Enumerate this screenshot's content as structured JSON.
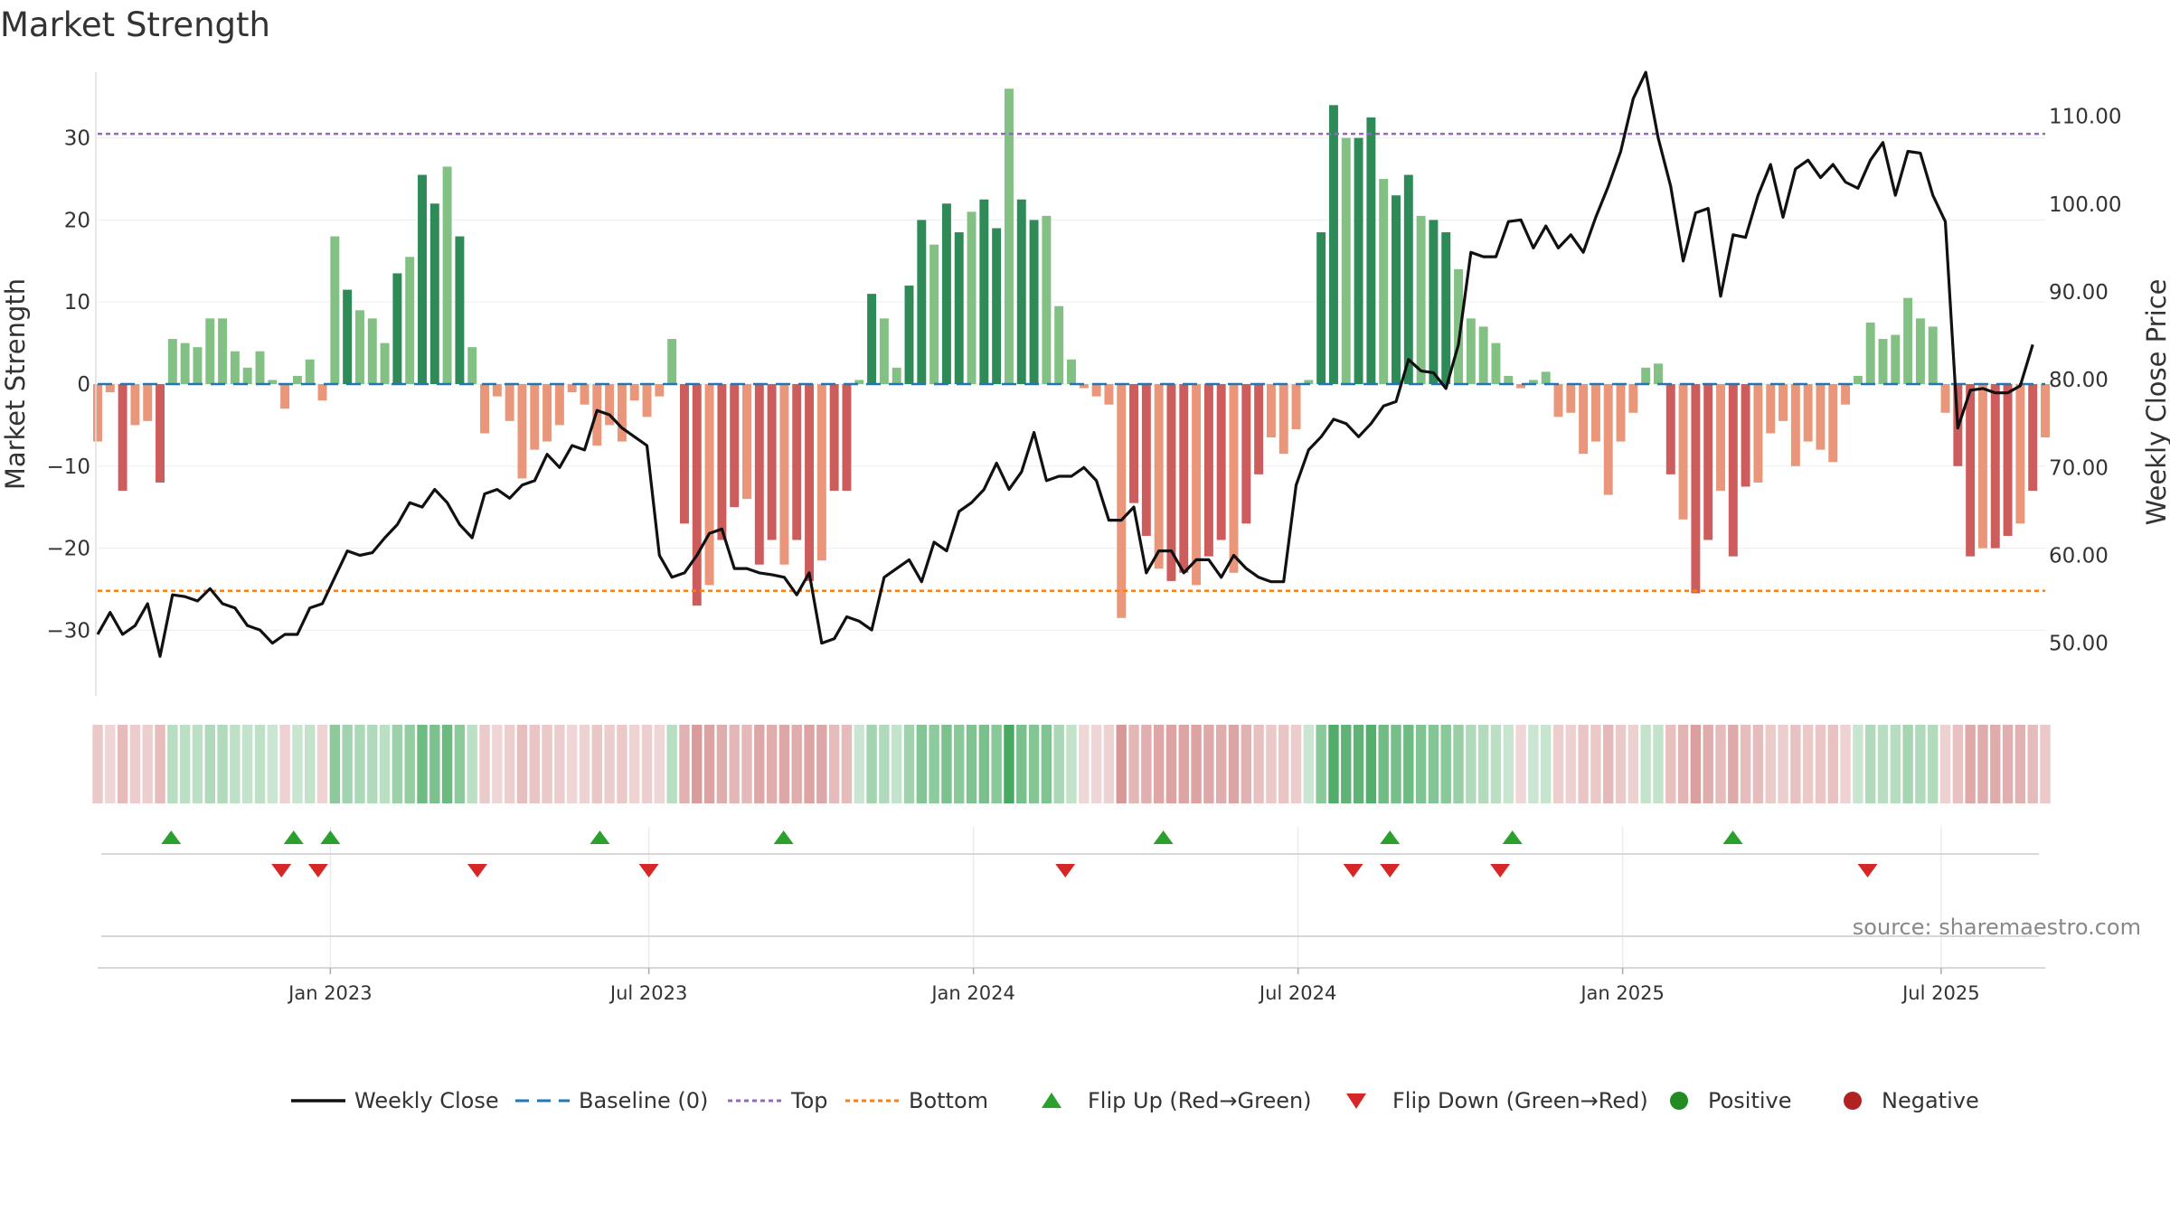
{
  "title": "Market Strength",
  "source": "source: sharemaestro.com",
  "chart_data": {
    "type": "bar",
    "title": "Market Strength",
    "ylabel": "Market Strength",
    "y2label": "Weekly Close Price",
    "ylim": [
      -38,
      38
    ],
    "y2lim": [
      44,
      115
    ],
    "yticks": [
      30,
      20,
      10,
      0,
      -10,
      -20,
      -30
    ],
    "yticklabels": [
      "30",
      "20",
      "10",
      "0",
      "−10",
      "−20",
      "−30"
    ],
    "y2ticks": [
      110,
      100,
      90,
      80,
      70,
      60,
      50
    ],
    "y2ticklabels": [
      "110.00",
      "100.00",
      "90.00",
      "80.00",
      "70.00",
      "60.00",
      "50.00"
    ],
    "top_line": 30.5,
    "bottom_line": -25.2,
    "x_start_week": -19,
    "x_end_week": 140,
    "xticks": [
      {
        "week": 0,
        "label": "Jan 2023"
      },
      {
        "week": 26,
        "label": "Jul 2023"
      },
      {
        "week": 52.5,
        "label": "Jan 2024"
      },
      {
        "week": 79,
        "label": "Jul 2024"
      },
      {
        "week": 105.5,
        "label": "Jan 2025"
      },
      {
        "week": 131.5,
        "label": "Jul 2025"
      }
    ],
    "strength": [
      -7,
      -1,
      -13,
      -5,
      -4.5,
      -12,
      5.5,
      5,
      4.5,
      8,
      8,
      4,
      2,
      4,
      0.5,
      -3,
      1,
      3,
      -2,
      18,
      11.5,
      9,
      8,
      5,
      13.5,
      15.5,
      25.5,
      22,
      26.5,
      18,
      4.5,
      -6,
      -1.5,
      -4.5,
      -11.5,
      -8,
      -7,
      -5,
      -1,
      -2.5,
      -7.5,
      -5,
      -7,
      -2,
      -4,
      -1.5,
      5.5,
      -17,
      -27,
      -24.5,
      -19,
      -15,
      -14,
      -22,
      -19,
      -22,
      -19,
      -24,
      -21.5,
      -13,
      -13,
      0.5,
      11,
      8,
      2,
      12,
      20,
      17,
      22,
      18.5,
      21,
      22.5,
      19,
      36,
      22.5,
      20,
      20.5,
      9.5,
      3,
      -0.5,
      -1.5,
      -2.5,
      -28.5,
      -14.5,
      -18.5,
      -22.5,
      -24,
      -23,
      -24.5,
      -21,
      -19,
      -23,
      -17,
      -11,
      -6.5,
      -8.5,
      -5.5,
      0.5,
      18.5,
      34,
      30,
      30,
      32.5,
      25,
      23,
      25.5,
      20.5,
      20,
      18.5,
      14,
      8,
      7,
      5,
      1,
      -0.5,
      0.5,
      1.5,
      -4,
      -3.5,
      -8.5,
      -7,
      -13.5,
      -7,
      -3.5,
      2,
      2.5,
      -11,
      -16.5,
      -25.5,
      -19,
      -13,
      -21,
      -12.5,
      -12,
      -6,
      -4.5,
      -10,
      -7,
      -8,
      -9.5,
      -2.5,
      1,
      7.5,
      5.5,
      6,
      10.5,
      8,
      7,
      -3.5,
      -10,
      -21,
      -20,
      -20,
      -18.5,
      -17,
      -13,
      -6.5
    ],
    "price": [
      51,
      53.5,
      51,
      52,
      54.5,
      48.5,
      55.5,
      55.3,
      54.8,
      56.2,
      54.5,
      54,
      52,
      51.5,
      50,
      51,
      51,
      54,
      54.5,
      57.5,
      60.5,
      60,
      60.3,
      62,
      63.5,
      66,
      65.5,
      67.5,
      66,
      63.5,
      62,
      67,
      67.5,
      66.5,
      68,
      68.5,
      71.5,
      70,
      72.5,
      72,
      76.5,
      76,
      74.5,
      73.5,
      72.5,
      60,
      57.5,
      58,
      60,
      62.5,
      63,
      58.5,
      58.5,
      58,
      57.8,
      57.5,
      55.5,
      58,
      50,
      50.5,
      53,
      52.5,
      51.5,
      57.5,
      58.5,
      59.5,
      57,
      61.5,
      60.5,
      65,
      66,
      67.5,
      70.5,
      67.5,
      69.5,
      74,
      68.5,
      69,
      69,
      70,
      68.5,
      64,
      64,
      65.5,
      58,
      60.5,
      60.5,
      58,
      59.5,
      59.5,
      57.5,
      60,
      58.5,
      57.5,
      57,
      57,
      68,
      72,
      73.5,
      75.5,
      75,
      73.5,
      75,
      77,
      77.5,
      82.3,
      81,
      80.8,
      79,
      84,
      94.5,
      94,
      94,
      98,
      98.2,
      95,
      97.5,
      95,
      96.5,
      94.5,
      98.5,
      102,
      106,
      112,
      115,
      107.5,
      102,
      93.5,
      99,
      99.5,
      89.5,
      96.5,
      96.2,
      101,
      104.5,
      98.5,
      104,
      105,
      103,
      104.5,
      102.5,
      101.8,
      105,
      107,
      101,
      106,
      105.8,
      101,
      98,
      74.5,
      78.8,
      79,
      78.5,
      78.5,
      79.3,
      84
    ],
    "flip_up_weeks": [
      -13,
      -3,
      0,
      22,
      37,
      68,
      86.5,
      96.5,
      114.5
    ],
    "flip_down_weeks": [
      -4,
      -1,
      12,
      26,
      60,
      83.5,
      86.5,
      95.5,
      125.5
    ],
    "colors": {
      "positive_bar": "#2e8b57",
      "positive_bar_light": "#82c083",
      "negative_bar": "#cd5c5c",
      "negative_bar_light": "#e9967a",
      "price_line": "#111111",
      "baseline": "#1f77b4",
      "top_line": "#9467bd",
      "bottom_line": "#ff7f0e",
      "flip_up": "#2ca02c",
      "flip_down": "#d62728",
      "positive_dot": "#228b22",
      "negative_dot": "#b22222"
    },
    "legend": [
      {
        "label": "Weekly Close",
        "kind": "line",
        "color": "#111111"
      },
      {
        "label": "Baseline (0)",
        "kind": "dashed",
        "color": "#1f77b4"
      },
      {
        "label": "Top",
        "kind": "dotted",
        "color": "#9467bd"
      },
      {
        "label": "Bottom",
        "kind": "dotted",
        "color": "#ff7f0e"
      },
      {
        "label": "Flip Up (Red→Green)",
        "kind": "tri-up",
        "color": "#2ca02c"
      },
      {
        "label": "Flip Down (Green→Red)",
        "kind": "tri-down",
        "color": "#d62728"
      },
      {
        "label": "Positive",
        "kind": "dot",
        "color": "#228b22"
      },
      {
        "label": "Negative",
        "kind": "dot",
        "color": "#b22222"
      }
    ]
  }
}
